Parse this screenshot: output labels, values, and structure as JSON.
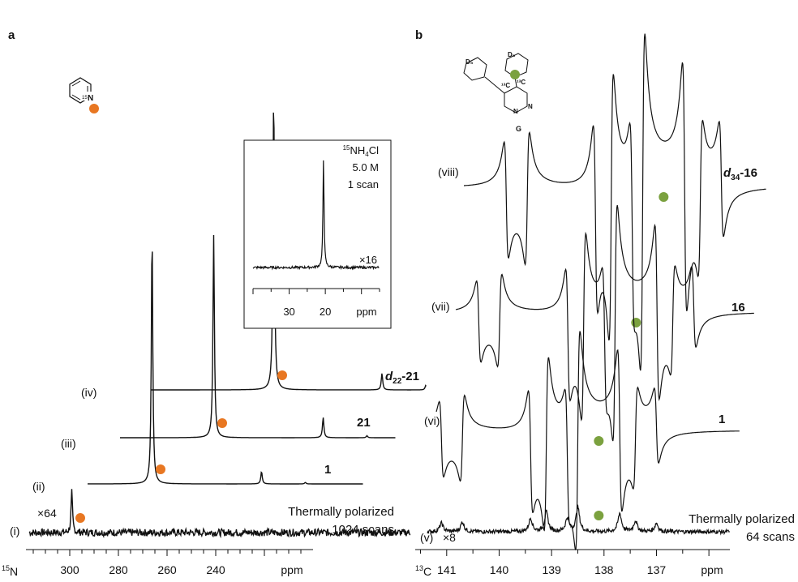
{
  "chart_data": [
    {
      "type": "line",
      "panel": "a",
      "xlabel": "ppm",
      "nucleus_prefix": "15",
      "nucleus_symbol": "N",
      "xlim": [
        318,
        200
      ],
      "ticks": [
        {
          "v": 300,
          "label": "300"
        },
        {
          "v": 280,
          "label": "280"
        },
        {
          "v": 260,
          "label": "260"
        },
        {
          "v": 240,
          "label": "240"
        }
      ],
      "traces": [
        {
          "roman": "(i)",
          "name": "",
          "note_lines": [
            "Thermally polarized",
            "1024 scans"
          ],
          "scale": "×64",
          "dot_ppm": 299,
          "noisy": true,
          "peaks": [
            {
              "ppm": 300.5,
              "height": 0.55
            }
          ]
        },
        {
          "roman": "(ii)",
          "name": "1",
          "note_lines": [],
          "scale": "",
          "dot_ppm": 290,
          "noisy": false,
          "peaks": [
            {
              "ppm": 291.5,
              "height": 1.0
            },
            {
              "ppm": 246.5,
              "height": 0.05
            },
            {
              "ppm": 228.5,
              "height": 0.006
            }
          ]
        },
        {
          "roman": "(iii)",
          "name": "21",
          "note_lines": [],
          "scale": "",
          "dot_ppm": 278,
          "noisy": false,
          "peaks": [
            {
              "ppm": 279.5,
              "height": 1.0
            },
            {
              "ppm": 234.5,
              "height": 0.1
            },
            {
              "ppm": 216.5,
              "height": 0.01
            }
          ]
        },
        {
          "roman": "(iv)",
          "name": "d22-21",
          "name_italic": "d",
          "name_sub": "22",
          "name_rest": "-21",
          "note_lines": [],
          "scale": "",
          "dot_ppm": 266,
          "noisy": false,
          "peaks": [
            {
              "ppm": 267.5,
              "height": 1.0
            },
            {
              "ppm": 223,
              "height": 0.055
            },
            {
              "ppm": 205,
              "height": 0.015
            }
          ]
        }
      ],
      "inset": {
        "label_prefix": "15",
        "label_compound": "NH",
        "label_sub": "4",
        "label_end": "Cl",
        "concentration": "5.0 M",
        "scans": "1 scan",
        "scale": "×16",
        "xlabel": "ppm",
        "xlim": [
          40,
          5
        ],
        "ticks": [
          {
            "v": 30,
            "label": "30"
          },
          {
            "v": 20,
            "label": "20"
          }
        ],
        "peaks": [
          {
            "ppm": 20.5,
            "height": 1.0
          }
        ]
      },
      "structure_label": "15N"
    },
    {
      "type": "line",
      "panel": "b",
      "xlabel": "ppm",
      "nucleus_prefix": "13",
      "nucleus_symbol": "C",
      "xlim": [
        141.6,
        135.6
      ],
      "ticks": [
        {
          "v": 141,
          "label": "141"
        },
        {
          "v": 140,
          "label": "140"
        },
        {
          "v": 139,
          "label": "139"
        },
        {
          "v": 138,
          "label": "138"
        },
        {
          "v": 137,
          "label": "137"
        }
      ],
      "traces": [
        {
          "roman": "(v)",
          "name": "",
          "note_lines": [
            "Thermally polarized",
            "64 scans"
          ],
          "scale": "×8",
          "dot_ppm": 138.1,
          "noisy": true
        },
        {
          "roman": "(vi)",
          "name": "1",
          "note_lines": [],
          "scale": "",
          "dot_ppm": 138.1,
          "noisy": false
        },
        {
          "roman": "(vii)",
          "name": "16",
          "note_lines": [],
          "scale": "",
          "dot_ppm": 138.1,
          "noisy": false
        },
        {
          "roman": "(viii)",
          "name": "d34-16",
          "name_italic": "d",
          "name_sub": "34",
          "name_rest": "-16",
          "note_lines": [],
          "scale": "",
          "dot_ppm": 138.1,
          "noisy": false
        }
      ],
      "structure_label": "G"
    }
  ],
  "colors": {
    "orange_dot": "#E87722",
    "green_dot": "#7BA13F",
    "trace": "#111111"
  }
}
